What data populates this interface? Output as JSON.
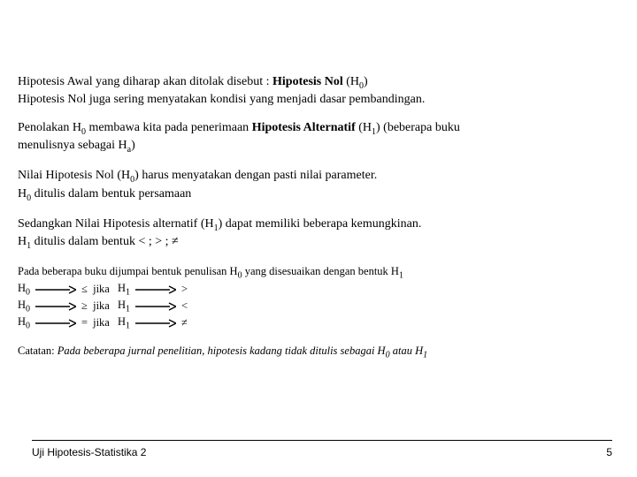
{
  "colors": {
    "text": "#000000",
    "background": "#ffffff",
    "hr": "#000000"
  },
  "fontsizes": {
    "body_pt": 14,
    "small_pt": 12.5,
    "sub_pt": 10,
    "footer_pt": 12
  },
  "p1": {
    "l1a": "Hipotesis Awal yang diharap akan ditolak disebut : ",
    "l1b": "Hipotesis Nol",
    "l1c": " (H",
    "l1sub": "0",
    "l1d": ")",
    "l2": "Hipotesis Nol juga sering menyatakan kondisi yang menjadi dasar pembandingan."
  },
  "p2": {
    "l1a": "Penolakan H",
    "l1sub": "0",
    "l1b": " membawa kita pada penerimaan ",
    "l1c": "Hipotesis Alternatif",
    "l1d": " (H",
    "l1sub2": "1",
    "l1e": ") (beberapa buku",
    "l2a": "menulisnya sebagai H",
    "l2sub": "a",
    "l2b": ")"
  },
  "p3": {
    "l1a": "Nilai Hipotesis Nol (H",
    "l1sub": "0",
    "l1b": ") harus menyatakan dengan pasti nilai parameter.",
    "l2a": "H",
    "l2sub": "0",
    "l2b": " ditulis dalam bentuk persamaan"
  },
  "p4": {
    "l1a": "Sedangkan Nilai Hipotesis alternatif (H",
    "l1sub": "1",
    "l1b": ") dapat memiliki beberapa kemungkinan.",
    "l2a": "H",
    "l2sub": "1",
    "l2b": " ditulis dalam bentuk < ; > ; ≠"
  },
  "p5": {
    "intro_a": "Pada beberapa buku dijumpai bentuk penulisan H",
    "intro_sub": "0",
    "intro_b": " yang disesuaikan dengan bentuk H",
    "intro_sub2": "1",
    "rows": [
      {
        "h0": "H",
        "s0": "0",
        "op0": "≤",
        "mid": "jika",
        "h1": "H",
        "s1": "1",
        "op1": ">"
      },
      {
        "h0": "H",
        "s0": "0",
        "op0": "≥",
        "mid": "jika",
        "h1": "H",
        "s1": "1",
        "op1": "<"
      },
      {
        "h0": "H",
        "s0": "0",
        "op0": "=",
        "mid": "jika",
        "h1": "H",
        "s1": "1",
        "op1": "≠"
      }
    ]
  },
  "p6": {
    "a": "Catatan: ",
    "b": "Pada beberapa jurnal penelitian, hipotesis kadang tidak ditulis sebagai H",
    "bsub": "0",
    "c": " atau H",
    "csub": "1"
  },
  "footer": {
    "label": "Uji Hipotesis-Statistika 2",
    "page": "5"
  },
  "arrow": {
    "width": 46,
    "height": 10,
    "stroke": "#000000",
    "stroke_width": 1.4
  }
}
